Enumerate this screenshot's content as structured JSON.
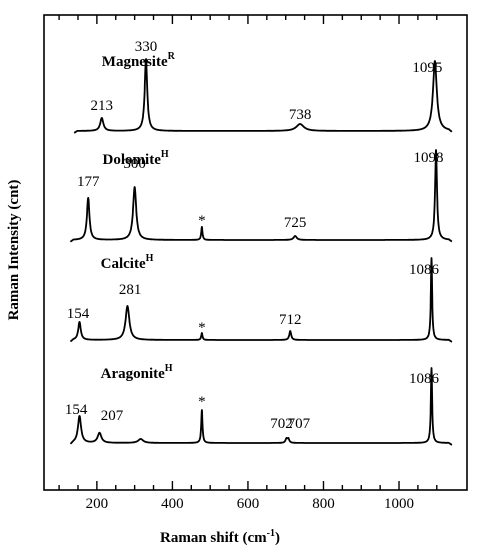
{
  "chart_data": {
    "type": "line",
    "title": "",
    "xlabel": "Raman shift (cm",
    "xlabel_sup": "-1",
    "xlabel_end": ")",
    "ylabel": "Raman Intensity (cnt)",
    "xlim": [
      60,
      1180
    ],
    "xticks": [
      200,
      400,
      600,
      800,
      1000
    ],
    "xtick_labels": [
      "200",
      "400",
      "600",
      "800",
      "1000"
    ],
    "grid": false,
    "series": [
      {
        "name": "Magnesite",
        "superscript": "R",
        "x_range": [
          140,
          1140
        ],
        "peaks": [
          {
            "x": 213,
            "label": "213"
          },
          {
            "x": 330,
            "label": "330"
          },
          {
            "x": 738,
            "label": "738"
          },
          {
            "x": 1095,
            "label": "1095"
          }
        ]
      },
      {
        "name": "Dolomite",
        "superscript": "H",
        "x_range": [
          130,
          1140
        ],
        "peaks": [
          {
            "x": 177,
            "label": "177"
          },
          {
            "x": 300,
            "label": "300"
          },
          {
            "x": 478,
            "label": "*"
          },
          {
            "x": 725,
            "label": "725"
          },
          {
            "x": 1098,
            "label": "1098"
          }
        ]
      },
      {
        "name": "Calcite",
        "superscript": "H",
        "x_range": [
          130,
          1140
        ],
        "peaks": [
          {
            "x": 154,
            "label": "154"
          },
          {
            "x": 281,
            "label": "281"
          },
          {
            "x": 478,
            "label": "*"
          },
          {
            "x": 712,
            "label": "712"
          },
          {
            "x": 1086,
            "label": "1086"
          }
        ]
      },
      {
        "name": "Aragonite",
        "superscript": "H",
        "x_range": [
          130,
          1140
        ],
        "peaks": [
          {
            "x": 154,
            "label": "154"
          },
          {
            "x": 207,
            "label": "207"
          },
          {
            "x": 478,
            "label": "*"
          },
          {
            "x": 702,
            "label": "702"
          },
          {
            "x": 707,
            "label": "707"
          },
          {
            "x": 1086,
            "label": "1086"
          }
        ]
      }
    ]
  }
}
